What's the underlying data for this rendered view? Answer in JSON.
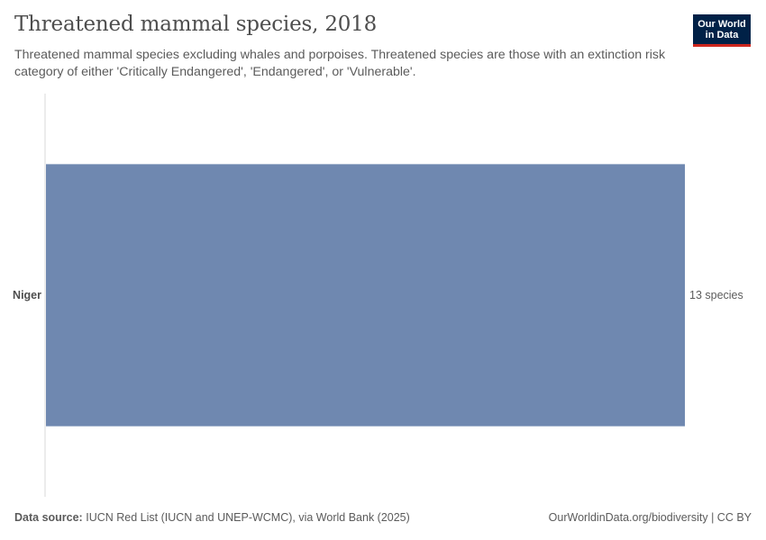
{
  "header": {
    "title": "Threatened mammal species, 2018",
    "subtitle": "Threatened mammal species excluding whales and porpoises. Threatened species are those with an extinction risk category of either 'Critically Endangered', 'Endangered', or 'Vulnerable'."
  },
  "logo": {
    "line1": "Our World",
    "line2": "in Data"
  },
  "footer": {
    "source_label": "Data source:",
    "source_text": "IUCN Red List (IUCN and UNEP-WCMC), via World Bank (2025)",
    "right_text": "OurWorldinData.org/biodiversity | CC BY"
  },
  "colors": {
    "bar": "#6f88b0",
    "axis": "#dadada",
    "logo_bg": "#002147",
    "logo_accent": "#ce261e"
  },
  "chart_data": {
    "type": "bar",
    "orientation": "horizontal",
    "title": "Threatened mammal species, 2018",
    "categories": [
      "Niger"
    ],
    "values": [
      13
    ],
    "value_labels": [
      "13 species"
    ],
    "unit": "species",
    "xlim": [
      0,
      13
    ],
    "grid": false,
    "legend": "none"
  }
}
